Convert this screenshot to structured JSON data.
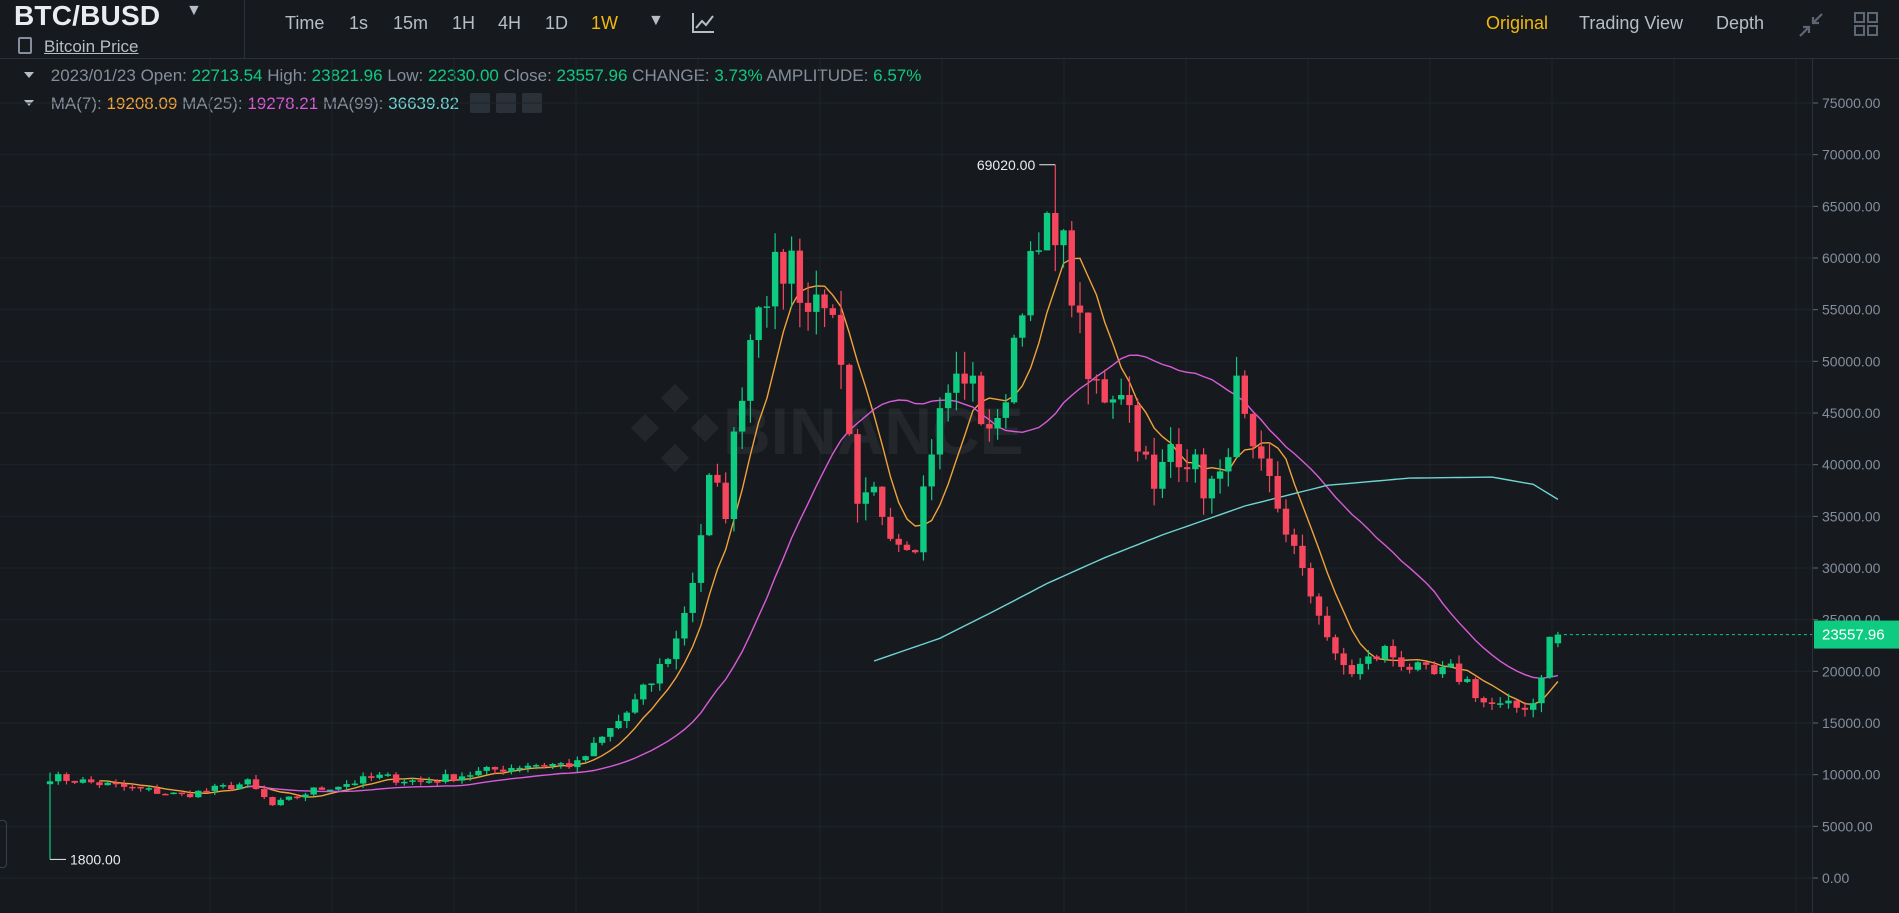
{
  "header": {
    "pair": "BTC/BUSD",
    "subtitle": "Bitcoin Price",
    "timeframes": [
      "Time",
      "1s",
      "15m",
      "1H",
      "4H",
      "1D",
      "1W"
    ],
    "active_timeframe": "1W",
    "views": [
      "Original",
      "Trading View",
      "Depth"
    ],
    "active_view": "Original"
  },
  "ohlc": {
    "date": "2023/01/23",
    "open_label": "Open:",
    "open": "22713.54",
    "high_label": "High:",
    "high": "23821.96",
    "low_label": "Low:",
    "low": "22330.00",
    "close_label": "Close:",
    "close": "23557.96",
    "change_label": "CHANGE:",
    "change": "3.73%",
    "amplitude_label": "AMPLITUDE:",
    "amplitude": "6.57%"
  },
  "ma": {
    "ma7_label": "MA(7):",
    "ma7": "19208.09",
    "ma25_label": "MA(25):",
    "ma25": "19278.21",
    "ma99_label": "MA(99):",
    "ma99": "36639.82"
  },
  "colors": {
    "up": "#0ecb81",
    "down": "#f6465d",
    "ma7": "#f0a23b",
    "ma25": "#d95bd9",
    "ma99": "#6fd4d4",
    "accent": "#f0b90b",
    "background": "#161a1e"
  },
  "chart_data": {
    "type": "candlestick",
    "y_ticks": [
      "75000.00",
      "70000.00",
      "65000.00",
      "60000.00",
      "55000.00",
      "50000.00",
      "45000.00",
      "40000.00",
      "35000.00",
      "30000.00",
      "25000.00",
      "20000.00",
      "15000.00",
      "10000.00",
      "5000.00",
      "0.00"
    ],
    "ylim": [
      0,
      75000
    ],
    "last_price": "23557.96",
    "max_label": "69020.00",
    "min_label": "1800.00",
    "watermark": "BINANCE",
    "anchors": [
      [
        0,
        9800
      ],
      [
        16,
        8000
      ],
      [
        24,
        9200
      ],
      [
        27,
        7000
      ],
      [
        32,
        8500
      ],
      [
        40,
        9800
      ],
      [
        45,
        9300
      ],
      [
        58,
        11000
      ],
      [
        64,
        11000
      ],
      [
        70,
        16000
      ],
      [
        73,
        19000
      ],
      [
        76,
        23000
      ],
      [
        78,
        29000
      ],
      [
        80,
        38000
      ],
      [
        82,
        36000
      ],
      [
        84,
        48000
      ],
      [
        86,
        57000
      ],
      [
        88,
        58000
      ],
      [
        90,
        60000
      ],
      [
        92,
        55000
      ],
      [
        94,
        57000
      ],
      [
        96,
        48000
      ],
      [
        98,
        35000
      ],
      [
        100,
        37000
      ],
      [
        103,
        33000
      ],
      [
        105,
        33000
      ],
      [
        107,
        42000
      ],
      [
        109,
        47000
      ],
      [
        111,
        49000
      ],
      [
        113,
        45000
      ],
      [
        115,
        43000
      ],
      [
        118,
        57000
      ],
      [
        120,
        60000
      ],
      [
        122,
        64000
      ],
      [
        124,
        57000
      ],
      [
        126,
        48000
      ],
      [
        128,
        47000
      ],
      [
        130,
        48000
      ],
      [
        132,
        43000
      ],
      [
        134,
        37000
      ],
      [
        136,
        42000
      ],
      [
        138,
        41000
      ],
      [
        140,
        38000
      ],
      [
        142,
        38000
      ],
      [
        144,
        47000
      ],
      [
        146,
        40000
      ],
      [
        148,
        38000
      ],
      [
        150,
        34000
      ],
      [
        152,
        29000
      ],
      [
        154,
        26000
      ],
      [
        156,
        21000
      ],
      [
        158,
        20000
      ],
      [
        160,
        21000
      ],
      [
        162,
        22000
      ],
      [
        164,
        21000
      ],
      [
        166,
        20000
      ],
      [
        168,
        19500
      ],
      [
        170,
        20000
      ],
      [
        172,
        19000
      ],
      [
        174,
        17000
      ],
      [
        176,
        16500
      ],
      [
        178,
        16500
      ],
      [
        180,
        17000
      ],
      [
        182,
        23000
      ],
      [
        183,
        23557.96
      ]
    ],
    "ma99_anchors": [
      [
        100,
        21000
      ],
      [
        108,
        23200
      ],
      [
        115,
        26000
      ],
      [
        121,
        28500
      ],
      [
        128,
        31000
      ],
      [
        135,
        33200
      ],
      [
        145,
        36000
      ],
      [
        155,
        38000
      ],
      [
        165,
        38700
      ],
      [
        175,
        38800
      ],
      [
        180,
        38100
      ],
      [
        183,
        36640
      ]
    ]
  }
}
